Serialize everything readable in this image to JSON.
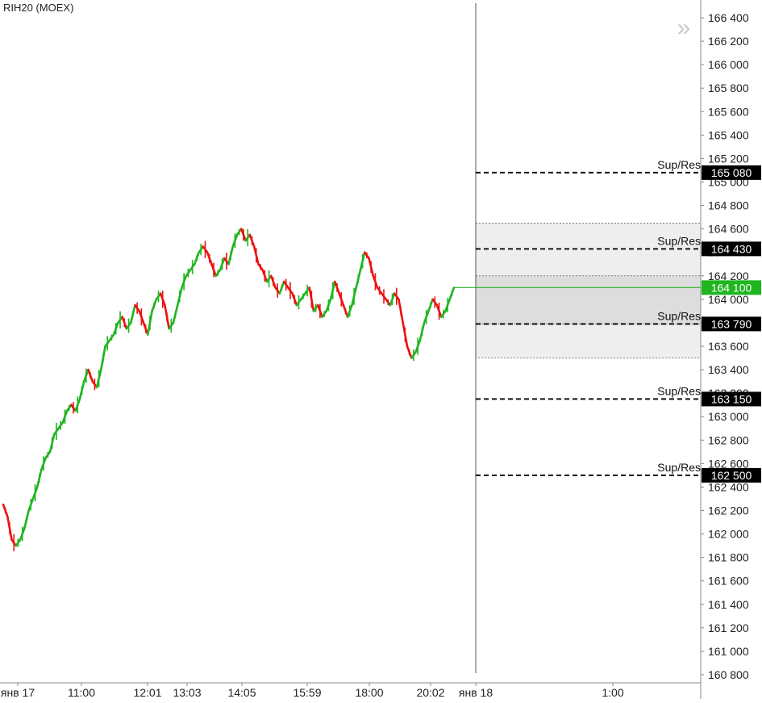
{
  "chart_data": {
    "type": "line",
    "title": "RIH20 (MOEX)",
    "xlabel": "",
    "ylabel": "",
    "ylim": [
      160700,
      166550
    ],
    "y_ticks": [
      166400,
      166200,
      166000,
      165800,
      165600,
      165400,
      165200,
      165000,
      164800,
      164600,
      164400,
      164200,
      164000,
      163800,
      163600,
      163400,
      163200,
      163000,
      162800,
      162600,
      162400,
      162200,
      162000,
      161800,
      161600,
      161400,
      161200,
      161000,
      160800
    ],
    "y_tick_labels": [
      "166 400",
      "166 200",
      "166 000",
      "165 800",
      "165 600",
      "165 400",
      "165 200",
      "165 000",
      "164 800",
      "164 600",
      "164 400",
      "164 200",
      "164 000",
      "163 800",
      "163 600",
      "163 400",
      "163 200",
      "163 000",
      "162 800",
      "162 600",
      "162 400",
      "162 200",
      "162 000",
      "161 800",
      "161 600",
      "161 400",
      "161 200",
      "161 000",
      "160 800"
    ],
    "x_tick_labels": [
      "янв 17",
      "11:00",
      "12:01",
      "13:03",
      "14:05",
      "15:59",
      "18:00",
      "20:02",
      "янв 18",
      "1:00"
    ],
    "series": [
      {
        "color_up": "#1fb51f",
        "color_down": "#ee1111",
        "values": [
          162250,
          162150,
          161950,
          161900,
          161950,
          162050,
          162200,
          162300,
          162400,
          162550,
          162650,
          162700,
          162850,
          162900,
          162950,
          163050,
          163100,
          163050,
          163150,
          163300,
          163400,
          163300,
          163250,
          163400,
          163600,
          163650,
          163700,
          163800,
          163850,
          163750,
          163800,
          163950,
          163900,
          163800,
          163700,
          163900,
          164000,
          164050,
          163950,
          163750,
          163800,
          163950,
          164100,
          164200,
          164250,
          164300,
          164400,
          164450,
          164400,
          164300,
          164200,
          164250,
          164350,
          164300,
          164450,
          164550,
          164600,
          164500,
          164550,
          164450,
          164300,
          164250,
          164150,
          164200,
          164100,
          164050,
          164150,
          164100,
          164050,
          163950,
          164000,
          164050,
          164100,
          163900,
          163950,
          163850,
          163900,
          164000,
          164150,
          164050,
          163950,
          163850,
          163950,
          164100,
          164250,
          164400,
          164350,
          164200,
          164100,
          164050,
          164000,
          163950,
          164050,
          164000,
          163800,
          163600,
          163500,
          163550,
          163650,
          163800,
          163900,
          164000,
          163950,
          163850,
          163900,
          164000,
          164100
        ]
      }
    ],
    "last_price": {
      "value": 164100,
      "label": "164 100",
      "color": "#1fb51f"
    },
    "support_resistance": [
      {
        "value": 165080,
        "label": "165 080",
        "caption": "Sup/Res"
      },
      {
        "value": 164430,
        "label": "164 430",
        "caption": "Sup/Res"
      },
      {
        "value": 163790,
        "label": "163 790",
        "caption": "Sup/Res"
      },
      {
        "value": 163150,
        "label": "163 150",
        "caption": "Sup/Res"
      },
      {
        "value": 162500,
        "label": "162 500",
        "caption": "Sup/Res"
      }
    ],
    "zones": [
      {
        "from": 163500,
        "to": 164650,
        "color": "#eeeeee"
      },
      {
        "from": 163790,
        "to": 164200,
        "color": "#dddddd"
      }
    ],
    "grid": false,
    "legend": "none"
  },
  "controls": {
    "scroll_right_icon": "double-chevron-right-icon",
    "scroll_right_glyph": "»"
  }
}
